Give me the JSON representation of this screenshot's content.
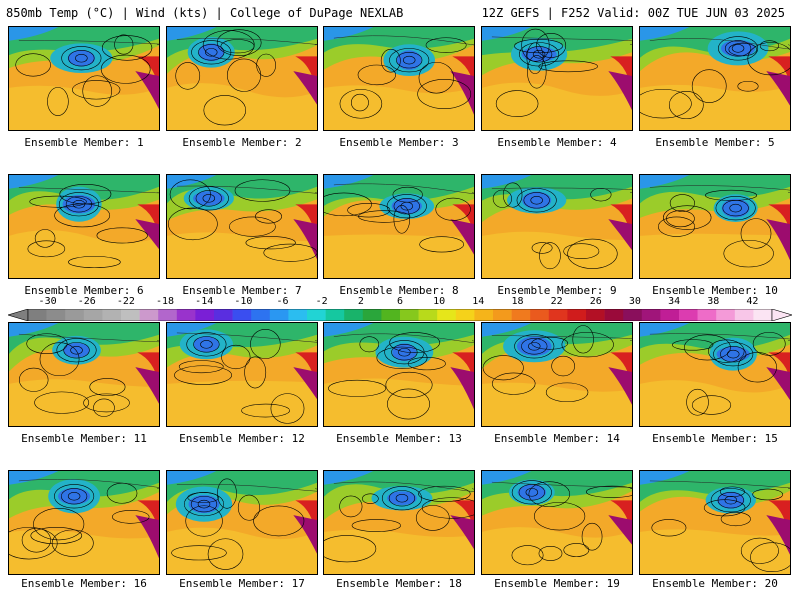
{
  "header": {
    "left": "850mb Temp (°C) | Wind (kts) | College of DuPage NEXLAB",
    "right": "12Z GEFS | F252 Valid: 00Z TUE JUN 03 2025"
  },
  "colorbar": {
    "tick_labels": [
      "-30",
      "-26",
      "-22",
      "-18",
      "-14",
      "-10",
      "-6",
      "-2",
      "2",
      "6",
      "10",
      "14",
      "18",
      "22",
      "26",
      "30",
      "34",
      "38",
      "42"
    ],
    "colors": [
      "#7f7f7f",
      "#8c8c8c",
      "#9a9a9a",
      "#a6a6a6",
      "#b2b2b2",
      "#bfbfbf",
      "#cc99cc",
      "#b266cc",
      "#9933cc",
      "#7a1fd6",
      "#5a2ee0",
      "#3a4ef0",
      "#2d73f0",
      "#2a97f2",
      "#2bbdf0",
      "#21d4d4",
      "#15c8a0",
      "#19b36a",
      "#2aa63b",
      "#52b51f",
      "#86c81d",
      "#b8da1b",
      "#e6e61a",
      "#f5d21a",
      "#f5b41a",
      "#f39a1c",
      "#f07a1e",
      "#ea5a1e",
      "#e0351e",
      "#d01c1c",
      "#b31025",
      "#9a0a3a",
      "#8a0f5c",
      "#a0157a",
      "#c01e96",
      "#dc3cb0",
      "#ee6cc8",
      "#f49ad8",
      "#f8c6e8",
      "#fbe4f3"
    ]
  },
  "members": [
    {
      "label": "Ensemble Member: 1"
    },
    {
      "label": "Ensemble Member: 2"
    },
    {
      "label": "Ensemble Member: 3"
    },
    {
      "label": "Ensemble Member: 4"
    },
    {
      "label": "Ensemble Member: 5"
    },
    {
      "label": "Ensemble Member: 6"
    },
    {
      "label": "Ensemble Member: 7"
    },
    {
      "label": "Ensemble Member: 8"
    },
    {
      "label": "Ensemble Member: 9"
    },
    {
      "label": "Ensemble Member: 10"
    },
    {
      "label": "Ensemble Member: 11"
    },
    {
      "label": "Ensemble Member: 12"
    },
    {
      "label": "Ensemble Member: 13"
    },
    {
      "label": "Ensemble Member: 14"
    },
    {
      "label": "Ensemble Member: 15"
    },
    {
      "label": "Ensemble Member: 16"
    },
    {
      "label": "Ensemble Member: 17"
    },
    {
      "label": "Ensemble Member: 18"
    },
    {
      "label": "Ensemble Member: 19"
    },
    {
      "label": "Ensemble Member: 20"
    }
  ]
}
